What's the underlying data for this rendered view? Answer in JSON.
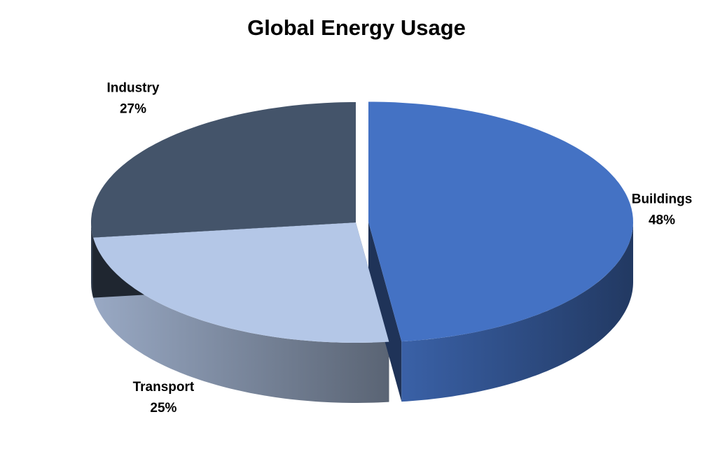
{
  "chart_data": {
    "type": "pie3d",
    "title": "Global Energy Usage",
    "categories": [
      "Buildings",
      "Transport",
      "Industry"
    ],
    "values": [
      48,
      25,
      27
    ],
    "value_labels": [
      "48%",
      "25%",
      "27%"
    ],
    "colors": [
      "#4472c4",
      "#b4c7e7",
      "#44546a"
    ],
    "explode": [
      true,
      false,
      false
    ]
  }
}
